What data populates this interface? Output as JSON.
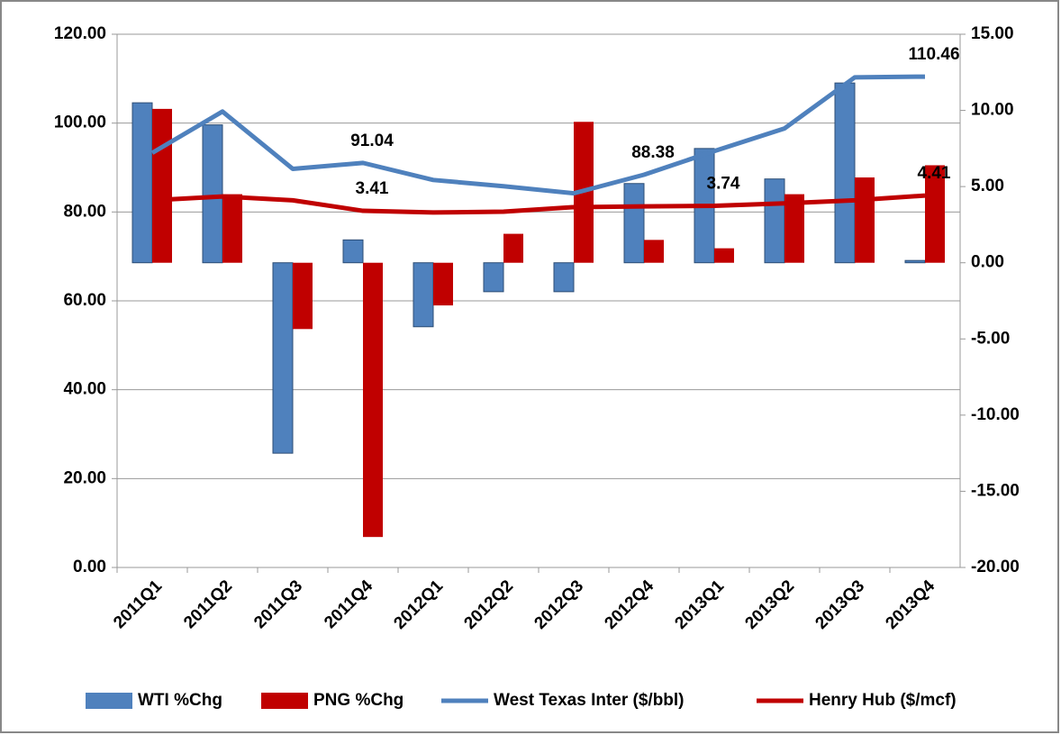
{
  "chart_data": {
    "type": "combo",
    "categories": [
      "2011Q1",
      "2011Q2",
      "2011Q3",
      "2011Q4",
      "2012Q1",
      "2012Q2",
      "2012Q3",
      "2012Q4",
      "2013Q1",
      "2013Q2",
      "2013Q3",
      "2013Q4"
    ],
    "series": [
      {
        "name": "WTI %Chg",
        "type": "bar",
        "axis": "y2",
        "color": "#4f81bd",
        "values": [
          10.5,
          9.05,
          -12.5,
          1.5,
          -4.2,
          -1.9,
          -1.9,
          5.2,
          7.5,
          5.5,
          11.8,
          0.15
        ]
      },
      {
        "name": "PNG %Chg",
        "type": "bar",
        "axis": "y2",
        "color": "#c00000",
        "values": [
          10.1,
          4.5,
          -4.35,
          -18.0,
          -2.8,
          1.9,
          9.25,
          1.5,
          0.95,
          4.5,
          5.6,
          6.4
        ]
      },
      {
        "name": "West Texas Inter ($/bbl)",
        "type": "line",
        "axis": "y",
        "color": "#4f81bd",
        "values": [
          93.3,
          102.6,
          89.7,
          91.04,
          87.2,
          85.8,
          84.2,
          88.38,
          93.7,
          98.8,
          110.3,
          110.46
        ],
        "value_labels": [
          null,
          null,
          null,
          "91.04",
          null,
          null,
          null,
          "88.38",
          null,
          null,
          null,
          "110.46"
        ]
      },
      {
        "name": "Henry Hub ($/mcf)",
        "type": "line",
        "axis": "y2",
        "color": "#c00000",
        "values": [
          4.1,
          4.35,
          4.1,
          3.41,
          3.3,
          3.35,
          3.65,
          3.7,
          3.74,
          3.9,
          4.1,
          4.41
        ],
        "value_labels": [
          null,
          null,
          null,
          "3.41",
          null,
          null,
          null,
          null,
          "3.74",
          null,
          null,
          "4.41"
        ]
      }
    ],
    "ylim": [
      0,
      120
    ],
    "yticks": [
      {
        "value": 0,
        "label": "0.00"
      },
      {
        "value": 20,
        "label": "20.00"
      },
      {
        "value": 40,
        "label": "40.00"
      },
      {
        "value": 60,
        "label": "60.00"
      },
      {
        "value": 80,
        "label": "80.00"
      },
      {
        "value": 100,
        "label": "100.00"
      },
      {
        "value": 120,
        "label": "120.00"
      }
    ],
    "y2lim": [
      -20,
      15
    ],
    "y2ticks": [
      {
        "value": -20,
        "label": "-20.00"
      },
      {
        "value": -15,
        "label": "-15.00"
      },
      {
        "value": -10,
        "label": "-10.00"
      },
      {
        "value": -5,
        "label": "-5.00"
      },
      {
        "value": 0,
        "label": "0.00"
      },
      {
        "value": 5,
        "label": "5.00"
      },
      {
        "value": 10,
        "label": "10.00"
      },
      {
        "value": 15,
        "label": "15.00"
      }
    ],
    "grid": true,
    "legend": "bottom"
  }
}
